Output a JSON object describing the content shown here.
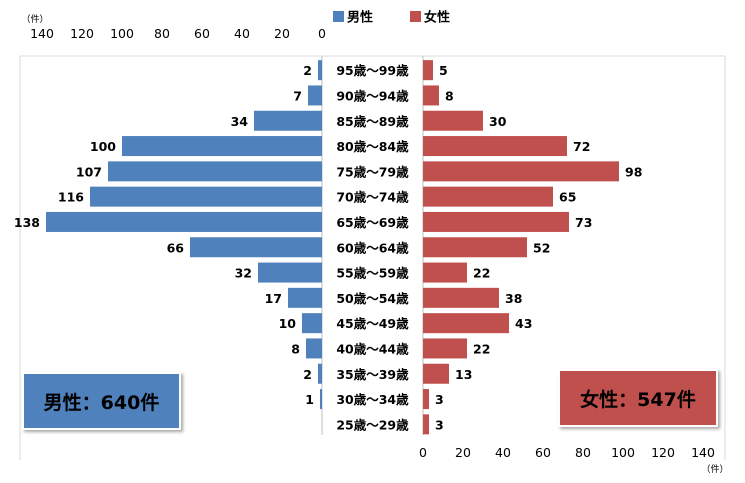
{
  "chart_data": {
    "type": "bar",
    "orientation": "horizontal-pyramid",
    "categories": [
      "95歳～99歳",
      "90歳～94歳",
      "85歳～89歳",
      "80歳～84歳",
      "75歳～79歳",
      "70歳～74歳",
      "65歳～69歳",
      "60歳～64歳",
      "55歳～59歳",
      "50歳～54歳",
      "45歳～49歳",
      "40歳～44歳",
      "35歳～39歳",
      "30歳～34歳",
      "25歳～29歳"
    ],
    "series": [
      {
        "name": "男性",
        "color": "#4F81BD",
        "values": [
          2,
          7,
          34,
          100,
          107,
          116,
          138,
          66,
          32,
          17,
          10,
          8,
          2,
          1,
          null
        ]
      },
      {
        "name": "女性",
        "color": "#C0504D",
        "values": [
          5,
          8,
          30,
          72,
          98,
          65,
          73,
          52,
          22,
          38,
          43,
          22,
          13,
          3,
          3
        ]
      }
    ],
    "left_axis": {
      "ticks": [
        140,
        120,
        100,
        80,
        60,
        40,
        20,
        0
      ],
      "unit": "（件）",
      "range": [
        0,
        140
      ],
      "direction": "reversed"
    },
    "right_axis": {
      "ticks": [
        0,
        20,
        40,
        60,
        80,
        100,
        120,
        140
      ],
      "unit": "（件）",
      "range": [
        0,
        140
      ]
    },
    "legend": {
      "position": "top-center"
    },
    "totals": {
      "male": "男性：640件",
      "female": "女性：547件"
    },
    "grid": false
  }
}
